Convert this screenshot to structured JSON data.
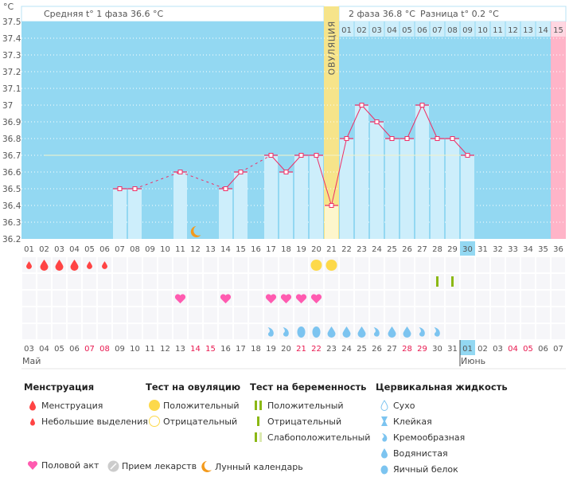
{
  "header": {
    "unit": "°C",
    "phase1_label": "Средняя t° 1 фаза 36.6 °C",
    "phase2_label": "2 фаза 36.8 °C",
    "diff_label": "Разница t° 0.2 °C",
    "ovulation_label": "ОВУЛЯЦИЯ"
  },
  "colors": {
    "plot_bg": "#93d8f2",
    "bar": "#cdeefb",
    "line": "#ee2f66",
    "ovulation": "#f6e48a",
    "highlight": "#ffb4c8",
    "today": "#93d8f2",
    "weekend": "#e8184f"
  },
  "chart_data": {
    "type": "line",
    "title": "",
    "ylabel": "°C",
    "ylim": [
      36.2,
      37.5
    ],
    "yticks": [
      "37.5",
      "37.4",
      "37.3",
      "37.2",
      "37.1",
      "37",
      "36.9",
      "36.8",
      "36.7",
      "36.6",
      "36.5",
      "36.4",
      "36.3",
      "36.2"
    ],
    "coverline": 36.7,
    "cycle_days": [
      "01",
      "02",
      "03",
      "04",
      "05",
      "06",
      "07",
      "08",
      "09",
      "10",
      "11",
      "12",
      "13",
      "14",
      "15",
      "16",
      "17",
      "18",
      "19",
      "20",
      "21",
      "22",
      "23",
      "24",
      "25",
      "26",
      "27",
      "28",
      "29",
      "30",
      "31",
      "32",
      "33",
      "34",
      "35",
      "36"
    ],
    "phase2_days": [
      "01",
      "02",
      "03",
      "04",
      "05",
      "06",
      "07",
      "08",
      "09",
      "10",
      "11",
      "12",
      "13",
      "14",
      "15"
    ],
    "temperatures": [
      null,
      null,
      null,
      null,
      null,
      null,
      36.5,
      36.5,
      null,
      null,
      36.6,
      null,
      null,
      36.5,
      36.6,
      null,
      36.7,
      36.6,
      36.7,
      36.7,
      36.4,
      36.8,
      37.0,
      36.9,
      36.8,
      36.8,
      37.0,
      36.8,
      36.8,
      36.7,
      null,
      null,
      null,
      null,
      null,
      null
    ],
    "ovulation_day": 21,
    "today_day": 30,
    "expected_period_day": 36,
    "moon_day": 12,
    "dates": [
      "03",
      "04",
      "05",
      "06",
      "07",
      "08",
      "09",
      "10",
      "11",
      "12",
      "13",
      "14",
      "15",
      "16",
      "17",
      "18",
      "19",
      "20",
      "21",
      "22",
      "23",
      "24",
      "25",
      "26",
      "27",
      "28",
      "29",
      "30",
      "31",
      "01",
      "02",
      "03",
      "04",
      "05",
      "06",
      "07"
    ],
    "weekend": [
      false,
      false,
      false,
      false,
      true,
      true,
      false,
      false,
      false,
      false,
      false,
      true,
      true,
      false,
      false,
      false,
      false,
      false,
      true,
      true,
      false,
      false,
      false,
      false,
      false,
      true,
      true,
      false,
      false,
      false,
      false,
      false,
      true,
      true,
      false,
      false
    ],
    "months": [
      {
        "name": "Май",
        "start_day": 1
      },
      {
        "name": "Июнь",
        "start_day": 30
      }
    ],
    "menstruation": {
      "1": "light",
      "2": "heavy",
      "3": "heavy",
      "4": "heavy",
      "5": "light",
      "6": "light"
    },
    "ovulation_test": {
      "20": "positive",
      "21": "positive"
    },
    "pregnancy_test": {
      "28": "negative",
      "29": "negative"
    },
    "intercourse": [
      11,
      14,
      17,
      18,
      19,
      20
    ],
    "fluid": {
      "17": "creamy",
      "18": "creamy",
      "19": "egg",
      "20": "egg",
      "21": "watery",
      "22": "watery",
      "23": "watery",
      "24": "creamy",
      "25": "watery",
      "26": "watery",
      "27": "creamy",
      "28": "creamy"
    }
  },
  "legend": {
    "menstruation": {
      "title": "Менструация",
      "items": [
        "Менструация",
        "Небольшие выделения"
      ]
    },
    "ovulation_test": {
      "title": "Тест на овуляцию",
      "items": [
        "Положительный",
        "Отрицательный"
      ]
    },
    "pregnancy_test": {
      "title": "Тест на беременность",
      "items": [
        "Положительный",
        "Отрицательный",
        "Слабоположительный"
      ]
    },
    "fluid": {
      "title": "Цервикальная жидкость",
      "items": [
        "Сухо",
        "Клейкая",
        "Кремообразная",
        "Водянистая",
        "Яичный белок"
      ]
    },
    "other": [
      "Половой акт",
      "Прием лекарств",
      "Лунный календарь"
    ]
  }
}
